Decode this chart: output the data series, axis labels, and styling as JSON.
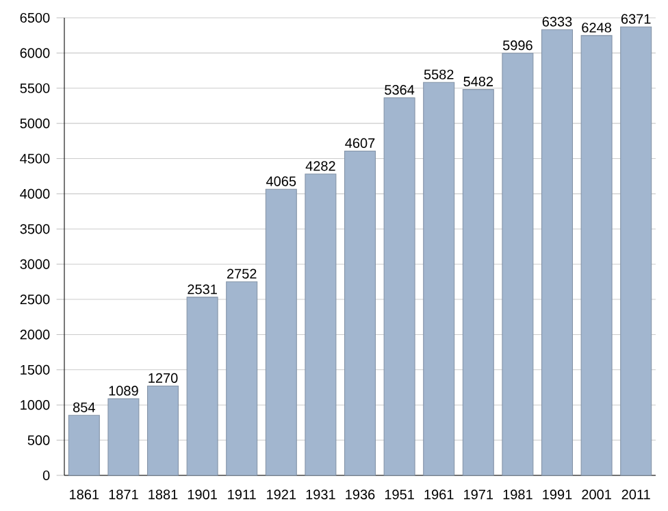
{
  "chart_data": {
    "type": "bar",
    "categories": [
      "1861",
      "1871",
      "1881",
      "1901",
      "1911",
      "1921",
      "1931",
      "1936",
      "1951",
      "1961",
      "1971",
      "1981",
      "1991",
      "2001",
      "2011"
    ],
    "values": [
      854,
      1089,
      1270,
      2531,
      2752,
      4065,
      4282,
      4607,
      5364,
      5582,
      5482,
      5996,
      6333,
      6248,
      6371
    ],
    "color": "#a2b6cf",
    "ylim": [
      0,
      6500
    ],
    "yticks": [
      0,
      500,
      1000,
      1500,
      2000,
      2500,
      3000,
      3500,
      4000,
      4500,
      5000,
      5500,
      6000,
      6500
    ],
    "grid": "y",
    "data_labels": true
  }
}
